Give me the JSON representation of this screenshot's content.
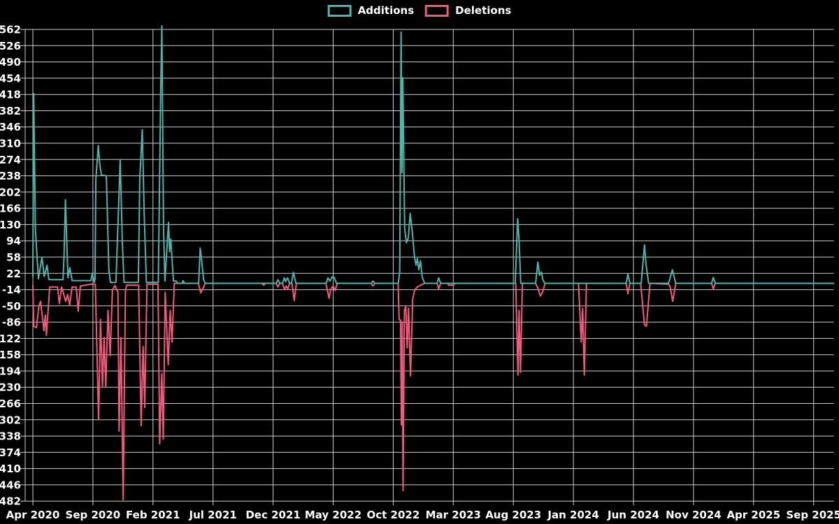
{
  "legend": {
    "items": [
      {
        "label": "Additions",
        "color": "#4cb6ad"
      },
      {
        "label": "Deletions",
        "color": "#f4597d"
      }
    ]
  },
  "colors": {
    "background": "#000000",
    "grid": "#cfcfcf",
    "text": "#ffffff",
    "additions": "#4cb6ad",
    "deletions": "#f4597d"
  },
  "chart_data": {
    "type": "line",
    "title": "",
    "xlabel": "",
    "ylabel": "",
    "x_unit": "weeks since Apr 2020",
    "x_range": [
      0,
      289.9
    ],
    "ylim": [
      -482,
      562
    ],
    "grid": true,
    "legend_position": "top-center",
    "x_tick_labels": [
      "Apr 2020",
      "Sep 2020",
      "Feb 2021",
      "Jul 2021",
      "Dec 2021",
      "May 2022",
      "Oct 2022",
      "Mar 2023",
      "Aug 2023",
      "Jan 2024",
      "Jun 2024",
      "Nov 2024",
      "Apr 2025",
      "Sep 2025"
    ],
    "x_weeks_per_tick": 21.74,
    "y_tick_labels": [
      "562",
      "526",
      "490",
      "454",
      "418",
      "382",
      "346",
      "310",
      "274",
      "238",
      "202",
      "166",
      "130",
      "94",
      "58",
      "22",
      "-14",
      "-50",
      "-86",
      "-122",
      "-158",
      "-194",
      "-230",
      "-266",
      "-302",
      "-338",
      "-374",
      "-410",
      "-446",
      "-482"
    ],
    "y_tick_values": [
      562,
      526,
      490,
      454,
      418,
      382,
      346,
      310,
      274,
      238,
      202,
      166,
      130,
      94,
      58,
      22,
      -14,
      -50,
      -86,
      -122,
      -158,
      -194,
      -230,
      -266,
      -302,
      -338,
      -374,
      -410,
      -446,
      -482
    ],
    "series": [
      {
        "name": "Additions",
        "color": "#4cb6ad",
        "points": [
          [
            0,
            15
          ],
          [
            0.3,
            420
          ],
          [
            0.9,
            120
          ],
          [
            2,
            10
          ],
          [
            3.3,
            58
          ],
          [
            4.1,
            15
          ],
          [
            5.1,
            40
          ],
          [
            5.8,
            8
          ],
          [
            10.9,
            8
          ],
          [
            11.3,
            60
          ],
          [
            11.8,
            185
          ],
          [
            12.7,
            12
          ],
          [
            13.4,
            35
          ],
          [
            14.2,
            6
          ],
          [
            21,
            6
          ],
          [
            21.5,
            22
          ],
          [
            22.3,
            2
          ],
          [
            22.5,
            10
          ],
          [
            22.8,
            230
          ],
          [
            23.7,
            305
          ],
          [
            24.2,
            265
          ],
          [
            24.8,
            240
          ],
          [
            26.6,
            238
          ],
          [
            27.5,
            30
          ],
          [
            28.1,
            2
          ],
          [
            30.1,
            2
          ],
          [
            30.6,
            95
          ],
          [
            31.6,
            273
          ],
          [
            32.4,
            90
          ],
          [
            33,
            2
          ],
          [
            38.2,
            2
          ],
          [
            38.7,
            230
          ],
          [
            39.6,
            340
          ],
          [
            40.3,
            155
          ],
          [
            41.1,
            2
          ],
          [
            45.4,
            2
          ],
          [
            46.3,
            430
          ],
          [
            46.7,
            570
          ],
          [
            47.3,
            120
          ],
          [
            47.8,
            5
          ],
          [
            49.1,
            135
          ],
          [
            49.5,
            70
          ],
          [
            49.9,
            98
          ],
          [
            50.9,
            5
          ],
          [
            51.9,
            5
          ],
          [
            52.4,
            0
          ],
          [
            54,
            0
          ],
          [
            54.4,
            6
          ],
          [
            54.9,
            0
          ],
          [
            60,
            0
          ],
          [
            60.6,
            78
          ],
          [
            61.2,
            45
          ],
          [
            61.8,
            8
          ],
          [
            62.4,
            0
          ],
          [
            88.1,
            0
          ],
          [
            88.7,
            8
          ],
          [
            89.4,
            0
          ],
          [
            90.4,
            0
          ],
          [
            91,
            12
          ],
          [
            91.5,
            4
          ],
          [
            92.2,
            12
          ],
          [
            92.9,
            0
          ],
          [
            93.6,
            0
          ],
          [
            94.3,
            24
          ],
          [
            95.2,
            0
          ],
          [
            106.2,
            0
          ],
          [
            106.8,
            12
          ],
          [
            107.5,
            5
          ],
          [
            108.3,
            14
          ],
          [
            109.1,
            13
          ],
          [
            109.9,
            0
          ],
          [
            122.5,
            0
          ],
          [
            123.1,
            5
          ],
          [
            123.8,
            0
          ],
          [
            132.3,
            0
          ],
          [
            132.8,
            25
          ],
          [
            133.3,
            556
          ],
          [
            133.6,
            245
          ],
          [
            133.9,
            455
          ],
          [
            134.6,
            120
          ],
          [
            135.2,
            90
          ],
          [
            135.9,
            100
          ],
          [
            136.6,
            155
          ],
          [
            137.4,
            110
          ],
          [
            138.1,
            60
          ],
          [
            138.7,
            40
          ],
          [
            139.2,
            55
          ],
          [
            139.7,
            30
          ],
          [
            140.3,
            50
          ],
          [
            140.9,
            15
          ],
          [
            141.8,
            0
          ],
          [
            146.3,
            0
          ],
          [
            146.9,
            12
          ],
          [
            147.6,
            0
          ],
          [
            174.6,
            0
          ],
          [
            175.5,
            143
          ],
          [
            176,
            95
          ],
          [
            176.6,
            0
          ],
          [
            182,
            0
          ],
          [
            182.8,
            47
          ],
          [
            183.4,
            18
          ],
          [
            184.1,
            25
          ],
          [
            184.6,
            8
          ],
          [
            185.3,
            0
          ],
          [
            214.8,
            0
          ],
          [
            215.4,
            21
          ],
          [
            216.1,
            0
          ],
          [
            220.2,
            0
          ],
          [
            221.4,
            85
          ],
          [
            221.9,
            45
          ],
          [
            222.9,
            0
          ],
          [
            230.1,
            0
          ],
          [
            231.5,
            30
          ],
          [
            232.7,
            0
          ],
          [
            245.7,
            0
          ],
          [
            246.3,
            13
          ],
          [
            247,
            0
          ],
          [
            289.9,
            0
          ]
        ]
      },
      {
        "name": "Deletions",
        "color": "#f4597d",
        "points": [
          [
            0,
            -5
          ],
          [
            0.3,
            -95
          ],
          [
            1.3,
            -98
          ],
          [
            2.2,
            -50
          ],
          [
            2.8,
            -40
          ],
          [
            4,
            -105
          ],
          [
            4.5,
            -70
          ],
          [
            4.9,
            -115
          ],
          [
            6.1,
            -8
          ],
          [
            8.9,
            -8
          ],
          [
            9.6,
            -45
          ],
          [
            10.4,
            -8
          ],
          [
            11.9,
            -40
          ],
          [
            12.6,
            -25
          ],
          [
            13.3,
            -48
          ],
          [
            14.2,
            -8
          ],
          [
            15.7,
            -8
          ],
          [
            16.4,
            -62
          ],
          [
            17.2,
            -6
          ],
          [
            19,
            -4
          ],
          [
            21,
            -2
          ],
          [
            22.6,
            -2
          ],
          [
            23.2,
            -150
          ],
          [
            23.8,
            -302
          ],
          [
            24.5,
            -80
          ],
          [
            25.2,
            -228
          ],
          [
            25.8,
            -120
          ],
          [
            26.4,
            -230
          ],
          [
            27.2,
            -60
          ],
          [
            28,
            -160
          ],
          [
            28.8,
            -15
          ],
          [
            29.7,
            -5
          ],
          [
            30.8,
            -20
          ],
          [
            31.2,
            -327
          ],
          [
            31.9,
            -120
          ],
          [
            32.7,
            -479
          ],
          [
            33.5,
            -15
          ],
          [
            34,
            -4
          ],
          [
            38.3,
            -4
          ],
          [
            39.2,
            -315
          ],
          [
            39.9,
            -140
          ],
          [
            40.5,
            -275
          ],
          [
            41.3,
            -2
          ],
          [
            45.3,
            -2
          ],
          [
            45.9,
            -355
          ],
          [
            46.7,
            -200
          ],
          [
            47.2,
            -345
          ],
          [
            47.9,
            -20
          ],
          [
            49,
            -180
          ],
          [
            49.7,
            -60
          ],
          [
            50.4,
            -130
          ],
          [
            51.2,
            0
          ],
          [
            59.9,
            0
          ],
          [
            60.8,
            -21
          ],
          [
            61.8,
            -8
          ],
          [
            62.4,
            0
          ],
          [
            83,
            0
          ],
          [
            83.5,
            -4
          ],
          [
            84.3,
            0
          ],
          [
            88.1,
            0
          ],
          [
            88.7,
            -8
          ],
          [
            89.4,
            0
          ],
          [
            90.4,
            0
          ],
          [
            91.1,
            -14
          ],
          [
            91.7,
            -6
          ],
          [
            92.3,
            -12
          ],
          [
            92.9,
            0
          ],
          [
            93.8,
            0
          ],
          [
            94.6,
            -38
          ],
          [
            95.4,
            0
          ],
          [
            106.1,
            0
          ],
          [
            107.2,
            -33
          ],
          [
            107.9,
            -12
          ],
          [
            108.7,
            -6
          ],
          [
            109.4,
            -16
          ],
          [
            110.2,
            0
          ],
          [
            122.5,
            0
          ],
          [
            123.1,
            -6
          ],
          [
            123.8,
            0
          ],
          [
            132.2,
            0
          ],
          [
            132.6,
            -80
          ],
          [
            133.1,
            -82
          ],
          [
            133.4,
            -313
          ],
          [
            133.7,
            -85
          ],
          [
            134,
            -459
          ],
          [
            134.5,
            -60
          ],
          [
            135,
            -50
          ],
          [
            135.5,
            -143
          ],
          [
            136,
            -55
          ],
          [
            136.7,
            -205
          ],
          [
            137.5,
            -35
          ],
          [
            138.2,
            -15
          ],
          [
            139.2,
            -8
          ],
          [
            140.3,
            -4
          ],
          [
            141.8,
            0
          ],
          [
            146.3,
            0
          ],
          [
            146.9,
            -12
          ],
          [
            147.6,
            0
          ],
          [
            150.1,
            0
          ],
          [
            150.5,
            -4
          ],
          [
            152.2,
            -4
          ],
          [
            152.7,
            0
          ],
          [
            174.8,
            0
          ],
          [
            175.6,
            -203
          ],
          [
            176,
            -60
          ],
          [
            176.5,
            -197
          ],
          [
            177.2,
            0
          ],
          [
            182,
            0
          ],
          [
            182.9,
            -12
          ],
          [
            183.7,
            -28
          ],
          [
            184.5,
            -20
          ],
          [
            185.4,
            0
          ],
          [
            197.5,
            0
          ],
          [
            198.5,
            -130
          ],
          [
            199,
            -55
          ],
          [
            199.6,
            -203
          ],
          [
            200.4,
            0
          ],
          [
            214.8,
            0
          ],
          [
            215.4,
            -23
          ],
          [
            216.1,
            0
          ],
          [
            220,
            0
          ],
          [
            221.4,
            -92
          ],
          [
            222.1,
            -95
          ],
          [
            223.4,
            0
          ],
          [
            230.1,
            -2
          ],
          [
            230.7,
            -8
          ],
          [
            231.6,
            -40
          ],
          [
            232.7,
            0
          ],
          [
            245.7,
            0
          ],
          [
            246.3,
            -12
          ],
          [
            247,
            0
          ],
          [
            289.9,
            0
          ]
        ]
      }
    ]
  }
}
